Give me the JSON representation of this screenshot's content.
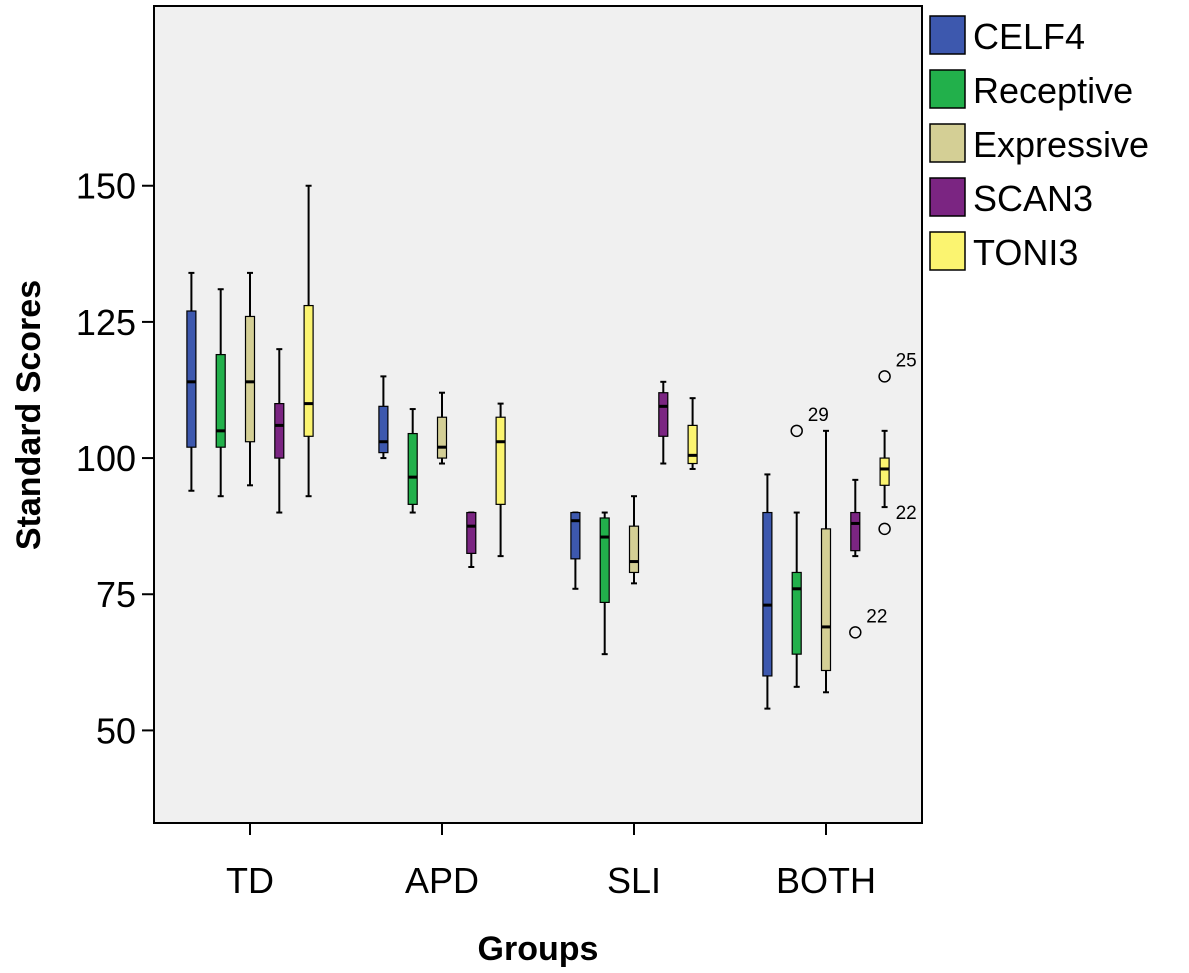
{
  "chart_data": {
    "type": "boxplot",
    "xlabel": "Groups",
    "ylabel": "Standard Scores",
    "ylim": [
      33,
      183
    ],
    "yticks": [
      50,
      75,
      100,
      125,
      150
    ],
    "categories": [
      "TD",
      "APD",
      "SLI",
      "BOTH"
    ],
    "legend_position": "right-outside-top",
    "grid": false,
    "plot_background": "#f0f0f0",
    "series": [
      {
        "name": "CELF4",
        "color": "#3d58ae",
        "boxes": [
          {
            "min": 94,
            "q1": 102,
            "median": 114,
            "q3": 127,
            "max": 134
          },
          {
            "min": 100,
            "q1": 101,
            "median": 103,
            "q3": 109.5,
            "max": 115
          },
          {
            "min": 76,
            "q1": 81.5,
            "median": 88.5,
            "q3": 90,
            "max": 90
          },
          {
            "min": 54,
            "q1": 60,
            "median": 73,
            "q3": 90,
            "max": 97
          }
        ]
      },
      {
        "name": "Receptive",
        "color": "#22b04b",
        "boxes": [
          {
            "min": 93,
            "q1": 102,
            "median": 105,
            "q3": 119,
            "max": 131
          },
          {
            "min": 90,
            "q1": 91.5,
            "median": 96.5,
            "q3": 104.5,
            "max": 109
          },
          {
            "min": 64,
            "q1": 73.5,
            "median": 85.5,
            "q3": 89,
            "max": 90
          },
          {
            "min": 58,
            "q1": 64,
            "median": 76,
            "q3": 79,
            "max": 90,
            "outliers": [
              {
                "value": 105,
                "label": "29"
              }
            ]
          }
        ]
      },
      {
        "name": "Expressive",
        "color": "#d4cf95",
        "boxes": [
          {
            "min": 95,
            "q1": 103,
            "median": 114,
            "q3": 126,
            "max": 134
          },
          {
            "min": 99,
            "q1": 100,
            "median": 102,
            "q3": 107.5,
            "max": 112
          },
          {
            "min": 77,
            "q1": 79,
            "median": 81,
            "q3": 87.5,
            "max": 93
          },
          {
            "min": 57,
            "q1": 61,
            "median": 69,
            "q3": 87,
            "max": 105
          }
        ]
      },
      {
        "name": "SCAN3",
        "color": "#7b2582",
        "boxes": [
          {
            "min": 90,
            "q1": 100,
            "median": 106,
            "q3": 110,
            "max": 120
          },
          {
            "min": 80,
            "q1": 82.5,
            "median": 87.5,
            "q3": 90,
            "max": 90
          },
          {
            "min": 99,
            "q1": 104,
            "median": 109.5,
            "q3": 112,
            "max": 114
          },
          {
            "min": 82,
            "q1": 83,
            "median": 88,
            "q3": 90,
            "max": 96,
            "outliers": [
              {
                "value": 68,
                "label": "22"
              }
            ]
          }
        ]
      },
      {
        "name": "TONI3",
        "color": "#fbf470",
        "boxes": [
          {
            "min": 93,
            "q1": 104,
            "median": 110,
            "q3": 128,
            "max": 150
          },
          {
            "min": 82,
            "q1": 91.5,
            "median": 103,
            "q3": 107.5,
            "max": 110
          },
          {
            "min": 98,
            "q1": 99,
            "median": 100.5,
            "q3": 106,
            "max": 111
          },
          {
            "min": 91,
            "q1": 95,
            "median": 98,
            "q3": 100,
            "max": 105,
            "outliers": [
              {
                "value": 115,
                "label": "25"
              },
              {
                "value": 87,
                "label": "22"
              }
            ]
          }
        ]
      }
    ]
  }
}
